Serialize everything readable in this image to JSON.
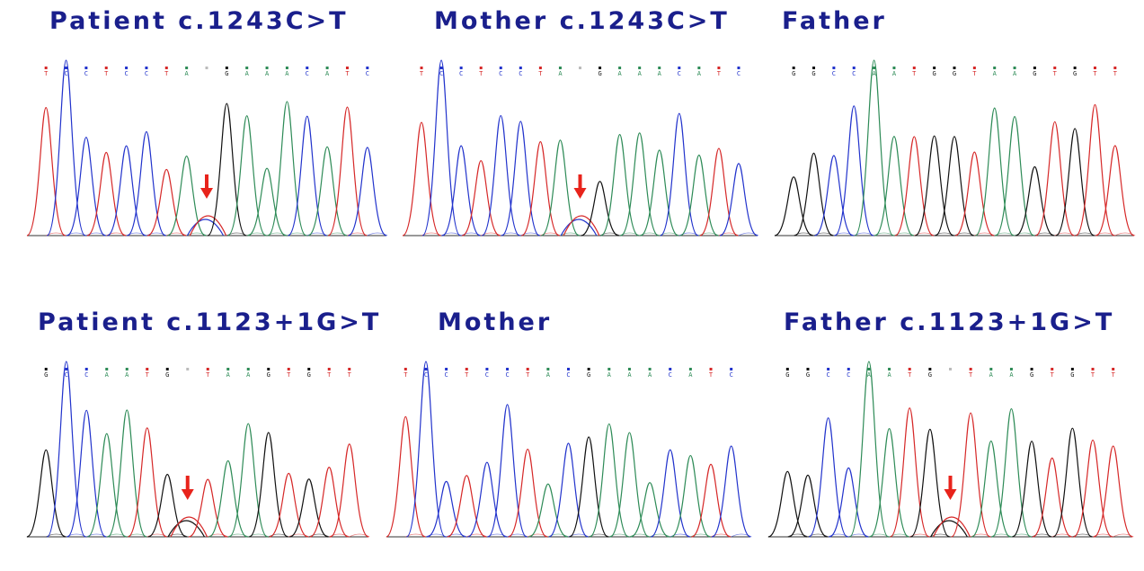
{
  "colors": {
    "A": "#2e8b57",
    "C": "#2233cc",
    "G": "#111111",
    "T": "#d62828",
    "N": "#bbbbbb",
    "title": "#1a1f8c",
    "arrow": "#e8231b",
    "baseline": "#333333"
  },
  "panels": [
    {
      "id": "p1",
      "title": "Patient c.1243C>T",
      "bases": [
        "T",
        "C",
        "C",
        "T",
        "C",
        "C",
        "T",
        "A",
        "",
        "G",
        "A",
        "A",
        "A",
        "C",
        "A",
        "T",
        "C"
      ],
      "variant_index": 8,
      "variant_bases": [
        "C",
        "T"
      ],
      "has_arrow": true,
      "max_peak": "C"
    },
    {
      "id": "p2",
      "title": "Mother c.1243C>T",
      "bases": [
        "T",
        "C",
        "C",
        "T",
        "C",
        "C",
        "T",
        "A",
        "",
        "G",
        "A",
        "A",
        "A",
        "C",
        "A",
        "T",
        "C"
      ],
      "variant_index": 8,
      "variant_bases": [
        "C",
        "T"
      ],
      "has_arrow": true,
      "max_peak": "C"
    },
    {
      "id": "p3",
      "title": "Father",
      "bases": [
        "G",
        "G",
        "C",
        "C",
        "A",
        "A",
        "T",
        "G",
        "G",
        "T",
        "A",
        "A",
        "G",
        "T",
        "G",
        "T",
        "T"
      ],
      "variant_index": null,
      "variant_bases": [],
      "has_arrow": false,
      "max_peak": "A"
    },
    {
      "id": "p4",
      "title": "Patient c.1123+1G>T",
      "bases": [
        "G",
        "C",
        "C",
        "A",
        "A",
        "T",
        "G",
        "",
        "T",
        "A",
        "A",
        "G",
        "T",
        "G",
        "T",
        "T"
      ],
      "variant_index": 7,
      "variant_bases": [
        "G",
        "T"
      ],
      "has_arrow": true,
      "max_peak": "C"
    },
    {
      "id": "p5",
      "title": "Mother",
      "bases": [
        "T",
        "C",
        "C",
        "T",
        "C",
        "C",
        "T",
        "A",
        "C",
        "G",
        "A",
        "A",
        "A",
        "C",
        "A",
        "T",
        "C"
      ],
      "variant_index": null,
      "variant_bases": [],
      "has_arrow": false,
      "max_peak": "C"
    },
    {
      "id": "p6",
      "title": "Father c.1123+1G>T",
      "bases": [
        "G",
        "G",
        "C",
        "C",
        "A",
        "A",
        "T",
        "G",
        "",
        "T",
        "A",
        "A",
        "G",
        "T",
        "G",
        "T",
        "T"
      ],
      "variant_index": 8,
      "variant_bases": [
        "G",
        "T"
      ],
      "has_arrow": true,
      "max_peak": "A"
    }
  ]
}
